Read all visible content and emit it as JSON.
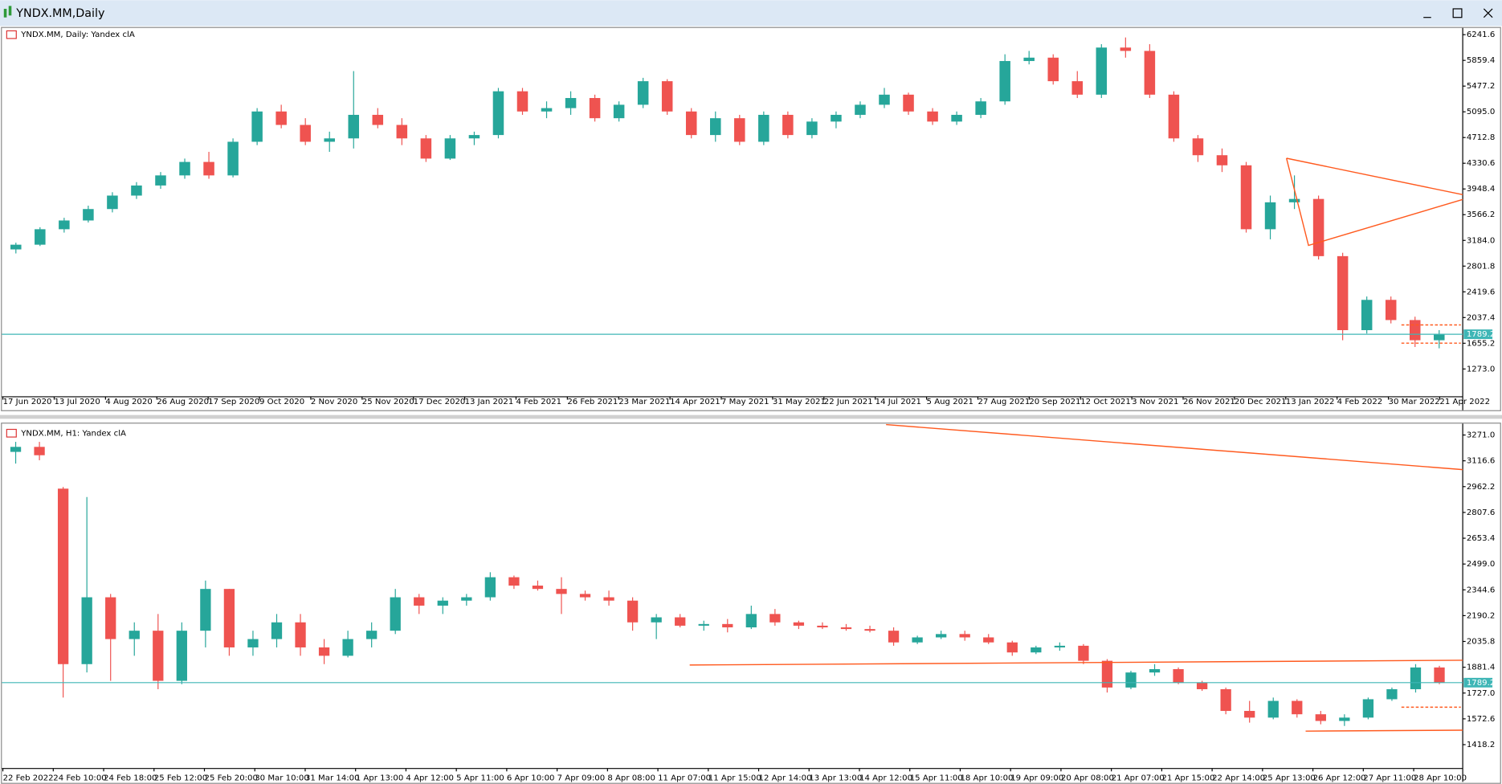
{
  "window": {
    "title": "YNDX.MM,Daily"
  },
  "chart_data": [
    {
      "type": "candlestick",
      "label": "YNDX.MM, Daily:  Yandex clA",
      "up_color": "#26a69a",
      "down_color": "#ef5350",
      "last_price": 1789.2,
      "last_price_color": "#3fb6b6",
      "ylim": [
        888,
        6327
      ],
      "yticks": [
        6241.6,
        5859.4,
        5477.2,
        {
          "value": 5095,
          "label": "5095.0"
        },
        4712.8,
        4330.6,
        3948.4,
        3566.2,
        {
          "value": 3184,
          "label": "3184.0"
        },
        2801.8,
        2419.6,
        2037.4,
        1655.2,
        {
          "value": 1273,
          "label": "1273.0"
        }
      ],
      "x_labels": [
        "17 Jun 2020",
        "13 Jul 2020",
        "4 Aug 2020",
        "26 Aug 2020",
        "17 Sep 2020",
        "9 Oct 2020",
        "2 Nov 2020",
        "25 Nov 2020",
        "17 Dec 2020",
        "13 Jan 2021",
        "4 Feb 2021",
        "26 Feb 2021",
        "23 Mar 2021",
        "14 Apr 2021",
        "7 May 2021",
        "31 May 2021",
        "22 Jun 2021",
        "14 Jul 2021",
        "5 Aug 2021",
        "27 Aug 2021",
        "20 Sep 2021",
        "12 Oct 2021",
        "3 Nov 2021",
        "26 Nov 2021",
        "20 Dec 2021",
        "13 Jan 2022",
        "4 Feb 2022",
        "30 Mar 2022",
        "21 Apr 2022"
      ],
      "candles": [
        [
          3050,
          3150,
          2990,
          3120
        ],
        [
          3120,
          3380,
          3100,
          3350
        ],
        [
          3350,
          3520,
          3300,
          3480
        ],
        [
          3480,
          3700,
          3450,
          3650
        ],
        [
          3650,
          3900,
          3600,
          3850
        ],
        [
          3850,
          4050,
          3800,
          4000
        ],
        [
          4000,
          4200,
          3950,
          4150
        ],
        [
          4150,
          4400,
          4100,
          4350
        ],
        [
          4350,
          4500,
          4100,
          4150
        ],
        [
          4150,
          4700,
          4120,
          4650
        ],
        [
          4650,
          5150,
          4600,
          5100
        ],
        [
          5100,
          5200,
          4850,
          4900
        ],
        [
          4900,
          5000,
          4600,
          4650
        ],
        [
          4650,
          4800,
          4500,
          4700
        ],
        [
          4700,
          5700,
          4550,
          5050
        ],
        [
          5050,
          5150,
          4850,
          4900
        ],
        [
          4900,
          5000,
          4600,
          4700
        ],
        [
          4700,
          4750,
          4350,
          4400
        ],
        [
          4400,
          4750,
          4380,
          4700
        ],
        [
          4700,
          4800,
          4600,
          4750
        ],
        [
          4750,
          5450,
          4700,
          5400
        ],
        [
          5400,
          5450,
          5050,
          5100
        ],
        [
          5100,
          5250,
          5000,
          5150
        ],
        [
          5150,
          5400,
          5050,
          5300
        ],
        [
          5300,
          5350,
          4950,
          5000
        ],
        [
          5000,
          5250,
          4950,
          5200
        ],
        [
          5200,
          5600,
          5150,
          5550
        ],
        [
          5550,
          5580,
          5050,
          5100
        ],
        [
          5100,
          5150,
          4700,
          4750
        ],
        [
          4750,
          5100,
          4650,
          5000
        ],
        [
          5000,
          5050,
          4600,
          4650
        ],
        [
          4650,
          5100,
          4600,
          5050
        ],
        [
          5050,
          5100,
          4700,
          4750
        ],
        [
          4750,
          5000,
          4700,
          4950
        ],
        [
          4950,
          5100,
          4850,
          5050
        ],
        [
          5050,
          5250,
          5000,
          5200
        ],
        [
          5200,
          5450,
          5150,
          5350
        ],
        [
          5350,
          5380,
          5050,
          5100
        ],
        [
          5100,
          5150,
          4900,
          4950
        ],
        [
          4950,
          5100,
          4900,
          5050
        ],
        [
          5050,
          5300,
          5000,
          5250
        ],
        [
          5250,
          5950,
          5200,
          5850
        ],
        [
          5850,
          6000,
          5800,
          5900
        ],
        [
          5900,
          5950,
          5500,
          5550
        ],
        [
          5550,
          5700,
          5300,
          5350
        ],
        [
          5350,
          6100,
          5300,
          6050
        ],
        [
          6050,
          6200,
          5900,
          6000
        ],
        [
          6000,
          6100,
          5300,
          5350
        ],
        [
          5350,
          5400,
          4650,
          4700
        ],
        [
          4700,
          4750,
          4350,
          4450
        ],
        [
          4450,
          4550,
          4200,
          4300
        ],
        [
          4300,
          4350,
          3300,
          3350
        ],
        [
          3350,
          3850,
          3200,
          3750
        ],
        [
          3750,
          4150,
          3650,
          3800
        ],
        [
          3800,
          3850,
          2900,
          2950
        ],
        [
          2950,
          3000,
          1700,
          1850
        ],
        [
          1850,
          2350,
          1800,
          2300
        ],
        [
          2300,
          2350,
          1950,
          2000
        ],
        [
          2000,
          2050,
          1600,
          1700
        ],
        [
          1700,
          1850,
          1580,
          1789.2
        ]
      ]
    },
    {
      "type": "candlestick",
      "label": "YNDX.MM, H1:  Yandex clA",
      "up_color": "#26a69a",
      "down_color": "#ef5350",
      "last_price": 1789.2,
      "last_price_color": "#3fb6b6",
      "ylim": [
        1287,
        3322
      ],
      "yticks": [
        {
          "value": 3271,
          "label": "3271.0"
        },
        3116.6,
        2962.2,
        2807.6,
        2653.4,
        {
          "value": 2499,
          "label": "2499.0"
        },
        2344.6,
        2190.2,
        2035.8,
        1881.4,
        {
          "value": 1727,
          "label": "1727.0"
        },
        1572.6,
        1418.2
      ],
      "x_labels": [
        "22 Feb 2022",
        "24 Feb 10:00",
        "24 Feb 18:00",
        "25 Feb 12:00",
        "25 Feb 20:00",
        "30 Mar 10:00",
        "31 Mar 14:00",
        "1 Apr 13:00",
        "4 Apr 12:00",
        "5 Apr 11:00",
        "6 Apr 10:00",
        "7 Apr 09:00",
        "8 Apr 08:00",
        "11 Apr 07:00",
        "11 Apr 15:00",
        "12 Apr 14:00",
        "13 Apr 13:00",
        "14 Apr 12:00",
        "15 Apr 11:00",
        "18 Apr 10:00",
        "19 Apr 09:00",
        "20 Apr 08:00",
        "21 Apr 07:00",
        "21 Apr 15:00",
        "22 Apr 14:00",
        "25 Apr 13:00",
        "26 Apr 12:00",
        "27 Apr 11:00",
        "28 Apr 10:00"
      ],
      "candles": [
        [
          3170,
          3230,
          3100,
          3200
        ],
        [
          3200,
          3230,
          3120,
          3150
        ],
        [
          2950,
          2960,
          1700,
          1900
        ],
        [
          1900,
          2900,
          1850,
          2300
        ],
        [
          2300,
          2320,
          1800,
          2050
        ],
        [
          2050,
          2150,
          1950,
          2100
        ],
        [
          2100,
          2200,
          1750,
          1800
        ],
        [
          1800,
          2150,
          1780,
          2100
        ],
        [
          2100,
          2400,
          2000,
          2350
        ],
        [
          2350,
          2350,
          1950,
          2000
        ],
        [
          2000,
          2100,
          1950,
          2050
        ],
        [
          2050,
          2200,
          2000,
          2150
        ],
        [
          2150,
          2200,
          1950,
          2000
        ],
        [
          2000,
          2050,
          1900,
          1950
        ],
        [
          1950,
          2100,
          1940,
          2050
        ],
        [
          2050,
          2150,
          2000,
          2100
        ],
        [
          2100,
          2350,
          2080,
          2300
        ],
        [
          2300,
          2320,
          2200,
          2250
        ],
        [
          2250,
          2300,
          2200,
          2280
        ],
        [
          2280,
          2320,
          2250,
          2300
        ],
        [
          2300,
          2450,
          2280,
          2420
        ],
        [
          2420,
          2430,
          2350,
          2370
        ],
        [
          2370,
          2400,
          2340,
          2350
        ],
        [
          2350,
          2420,
          2200,
          2320
        ],
        [
          2320,
          2340,
          2280,
          2300
        ],
        [
          2300,
          2340,
          2250,
          2280
        ],
        [
          2280,
          2300,
          2100,
          2150
        ],
        [
          2150,
          2200,
          2050,
          2180
        ],
        [
          2180,
          2200,
          2120,
          2130
        ],
        [
          2130,
          2160,
          2100,
          2140
        ],
        [
          2140,
          2170,
          2090,
          2120
        ],
        [
          2120,
          2250,
          2110,
          2200
        ],
        [
          2200,
          2230,
          2130,
          2150
        ],
        [
          2150,
          2160,
          2110,
          2130
        ],
        [
          2130,
          2150,
          2110,
          2120
        ],
        [
          2120,
          2140,
          2100,
          2110
        ],
        [
          2110,
          2130,
          2090,
          2100
        ],
        [
          2100,
          2120,
          2010,
          2030
        ],
        [
          2030,
          2070,
          2020,
          2060
        ],
        [
          2060,
          2100,
          2050,
          2080
        ],
        [
          2080,
          2100,
          2040,
          2060
        ],
        [
          2060,
          2080,
          2020,
          2030
        ],
        [
          2030,
          2040,
          1950,
          1970
        ],
        [
          1970,
          2010,
          1960,
          2000
        ],
        [
          2000,
          2030,
          1980,
          2010
        ],
        [
          2010,
          2020,
          1900,
          1920
        ],
        [
          1920,
          1930,
          1730,
          1760
        ],
        [
          1760,
          1860,
          1750,
          1850
        ],
        [
          1850,
          1900,
          1830,
          1870
        ],
        [
          1870,
          1880,
          1780,
          1790
        ],
        [
          1790,
          1800,
          1740,
          1750
        ],
        [
          1750,
          1760,
          1600,
          1620
        ],
        [
          1620,
          1680,
          1550,
          1580
        ],
        [
          1580,
          1700,
          1570,
          1680
        ],
        [
          1680,
          1690,
          1580,
          1600
        ],
        [
          1600,
          1620,
          1540,
          1560
        ],
        [
          1560,
          1600,
          1530,
          1580
        ],
        [
          1580,
          1700,
          1570,
          1690
        ],
        [
          1690,
          1760,
          1680,
          1750
        ],
        [
          1750,
          1900,
          1730,
          1880
        ],
        [
          1880,
          1890,
          1780,
          1789.2
        ]
      ]
    }
  ]
}
